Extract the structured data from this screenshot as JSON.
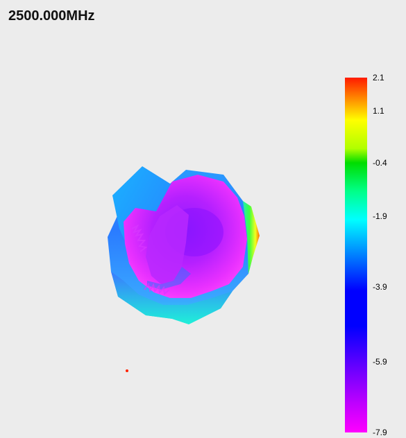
{
  "title": "2500.000MHz",
  "chart_data": {
    "type": "heatmap",
    "title": "2500.000MHz",
    "colorbar": {
      "min": -7.9,
      "max": 2.1,
      "ticks": [
        {
          "value": 2.1,
          "label": "2.1"
        },
        {
          "value": 1.1,
          "label": "1.1"
        },
        {
          "value": -0.4,
          "label": "-0.4"
        },
        {
          "value": -1.9,
          "label": "-1.9"
        },
        {
          "value": -3.9,
          "label": "-3.9"
        },
        {
          "value": -5.9,
          "label": "-5.9"
        },
        {
          "value": -7.9,
          "label": "-7.9"
        }
      ],
      "colors": [
        "#ff1a00",
        "#ffff00",
        "#00dd00",
        "#00ffff",
        "#0000ff",
        "#ff00ff"
      ]
    }
  },
  "colors": {
    "background": "#ececec",
    "marker": "#ff2200"
  }
}
